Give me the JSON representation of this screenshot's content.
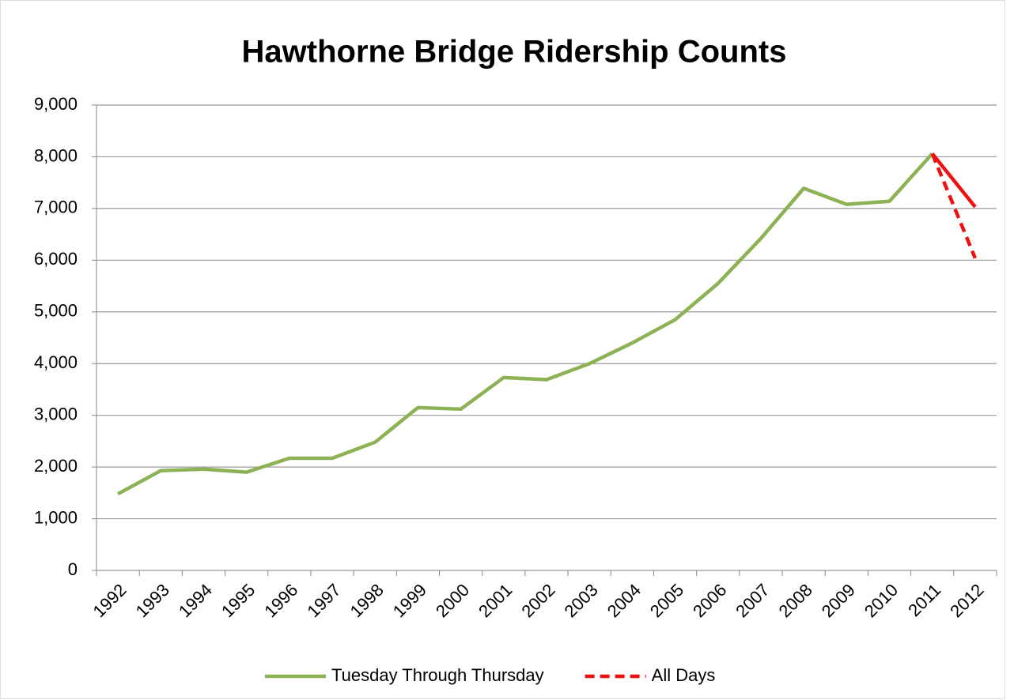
{
  "chart_data": {
    "type": "line",
    "title": "Hawthorne Bridge Ridership Counts",
    "categories": [
      "1992",
      "1993",
      "1994",
      "1995",
      "1996",
      "1997",
      "1998",
      "1999",
      "2000",
      "2001",
      "2002",
      "2003",
      "2004",
      "2005",
      "2006",
      "2007",
      "2008",
      "2009",
      "2010",
      "2011",
      "2012"
    ],
    "series": [
      {
        "name": "Tuesday Through Thursday",
        "color": "#8db255",
        "dash": false,
        "values": [
          1480,
          1930,
          1960,
          1900,
          2170,
          2170,
          2480,
          3150,
          3120,
          3730,
          3690,
          4000,
          4400,
          4850,
          5550,
          6420,
          7390,
          7080,
          7140,
          8060,
          null
        ]
      },
      {
        "color": "#ee1111",
        "dash": false,
        "values": [
          null,
          null,
          null,
          null,
          null,
          null,
          null,
          null,
          null,
          null,
          null,
          null,
          null,
          null,
          null,
          null,
          null,
          null,
          null,
          8060,
          7030
        ]
      },
      {
        "name": "All Days",
        "color": "#ee1111",
        "dash": true,
        "values": [
          null,
          null,
          null,
          null,
          null,
          null,
          null,
          null,
          null,
          null,
          null,
          null,
          null,
          null,
          null,
          null,
          null,
          null,
          null,
          8060,
          6040
        ]
      }
    ],
    "ylim": [
      0,
      9000
    ],
    "yticks": [
      0,
      {
        "value": 1000,
        "label": "1,000"
      },
      {
        "value": 2000,
        "label": "2,000"
      },
      {
        "value": 3000,
        "label": "3,000"
      },
      {
        "value": 4000,
        "label": "4,000"
      },
      {
        "value": 5000,
        "label": "5,000"
      },
      {
        "value": 6000,
        "label": "6,000"
      },
      {
        "value": 7000,
        "label": "7,000"
      },
      {
        "value": 8000,
        "label": "8,000"
      },
      {
        "value": 9000,
        "label": "9,000"
      }
    ],
    "grid": true,
    "legend": "bottom"
  }
}
